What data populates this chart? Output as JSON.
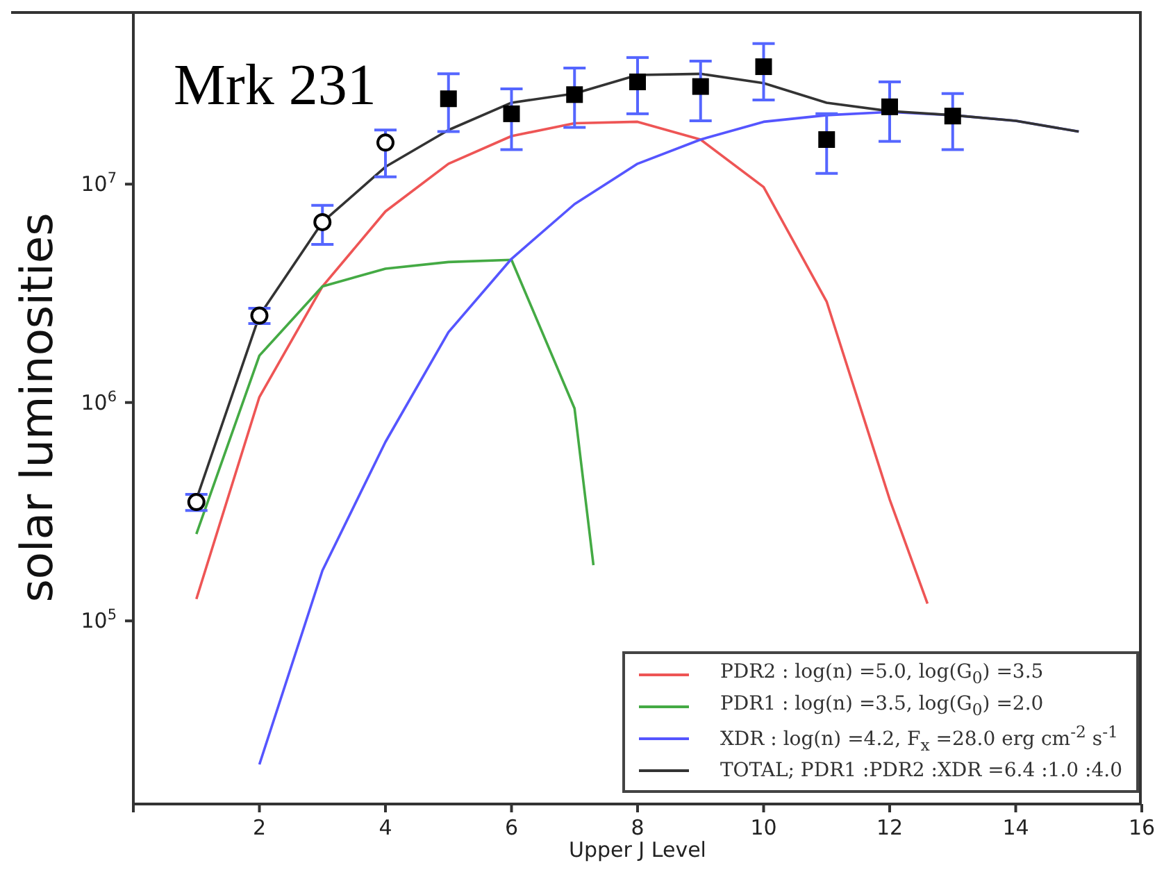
{
  "chart_data": {
    "type": "line",
    "xlabel": "Upper J Level",
    "ylabel": "solar luminosities",
    "annotations": [
      "Mrk 231"
    ],
    "xlim": [
      0,
      16
    ],
    "xticks": [
      {
        "value": 0,
        "label": null
      },
      2,
      4,
      6,
      8,
      10,
      12,
      14,
      16
    ],
    "ylim": [
      14500,
      62000000
    ],
    "yticks": [
      {
        "value": 100000,
        "label": "10$^{5}$"
      },
      {
        "value": 1000000,
        "label": "10$^{6}$"
      },
      {
        "value": 10000000,
        "label": "10$^{7}$"
      }
    ],
    "log": "y",
    "grid": false,
    "legend": "bottom right",
    "series": [
      {
        "name": "PDR2 : log(n) =5.0, log(G$_{0}$) =3.5",
        "color": "#ee5555",
        "marker": "none",
        "x": [
          1,
          2,
          3,
          4,
          5,
          6,
          7,
          8,
          9,
          10,
          11,
          12,
          12.6
        ],
        "values": [
          126000,
          1060000,
          3400000,
          7500000,
          12400000,
          16600000,
          19000000,
          19300000,
          16000000,
          9700000,
          2900000,
          360000,
          120000
        ]
      },
      {
        "name": "PDR1 : log(n) =3.5, log(G$_{0}$) =2.0",
        "color": "#44aa44",
        "marker": "none",
        "x": [
          1,
          2,
          3,
          4,
          5,
          6,
          7,
          7.3
        ],
        "values": [
          250000,
          1640000,
          3400000,
          4100000,
          4400000,
          4500000,
          940000,
          180000
        ]
      },
      {
        "name": "XDR : log(n) =4.2, F$_{x}$ =28.0 erg cm$^{-2}$ s$^{-1}$",
        "color": "#5555ff",
        "marker": "none",
        "x": [
          2,
          3,
          4,
          5,
          6,
          7,
          8,
          9,
          10,
          11,
          12,
          13,
          14,
          15
        ],
        "values": [
          22000,
          170000,
          660000,
          2100000,
          4550000,
          8100000,
          12400000,
          16000000,
          19300000,
          20700000,
          21400000,
          20700000,
          19500000,
          17400000
        ]
      },
      {
        "name": "TOTAL; PDR1 :PDR2 :XDR =6.4 :1.0 :4.0",
        "color": "#333333",
        "marker": "none",
        "x": [
          1,
          2,
          3,
          4,
          5,
          6,
          7,
          8,
          9,
          10,
          11,
          12,
          13,
          14,
          15
        ],
        "values": [
          360000,
          2500000,
          6700000,
          12000000,
          17700000,
          23600000,
          26000000,
          31600000,
          32000000,
          29000000,
          23600000,
          21600000,
          20700000,
          19500000,
          17400000
        ]
      },
      {
        "type": "scatter",
        "color": "#000000",
        "marker": "circle",
        "x": [
          1,
          2,
          3,
          4
        ],
        "values": [
          350000,
          2500000,
          6700000,
          15500000
        ],
        "errors": [
          [
            320000,
            380000
          ],
          [
            2300000,
            2700000
          ],
          [
            5300000,
            8000000
          ],
          [
            10800000,
            17700000
          ]
        ]
      },
      {
        "type": "scatter",
        "color": "#000000",
        "marker": "square",
        "x": [
          5,
          6,
          7,
          8,
          9,
          10,
          11,
          12,
          13
        ],
        "values": [
          24600000,
          21000000,
          25700000,
          29400000,
          28000000,
          34500000,
          16000000,
          22600000,
          20500000
        ],
        "errors": [
          [
            17400000,
            32000000
          ],
          [
            14400000,
            27300000
          ],
          [
            18200000,
            34000000
          ],
          [
            21000000,
            38000000
          ],
          [
            19500000,
            36600000
          ],
          [
            24300000,
            44000000
          ],
          [
            11200000,
            21000000
          ],
          [
            15700000,
            29400000
          ],
          [
            14400000,
            26000000
          ]
        ]
      }
    ]
  }
}
